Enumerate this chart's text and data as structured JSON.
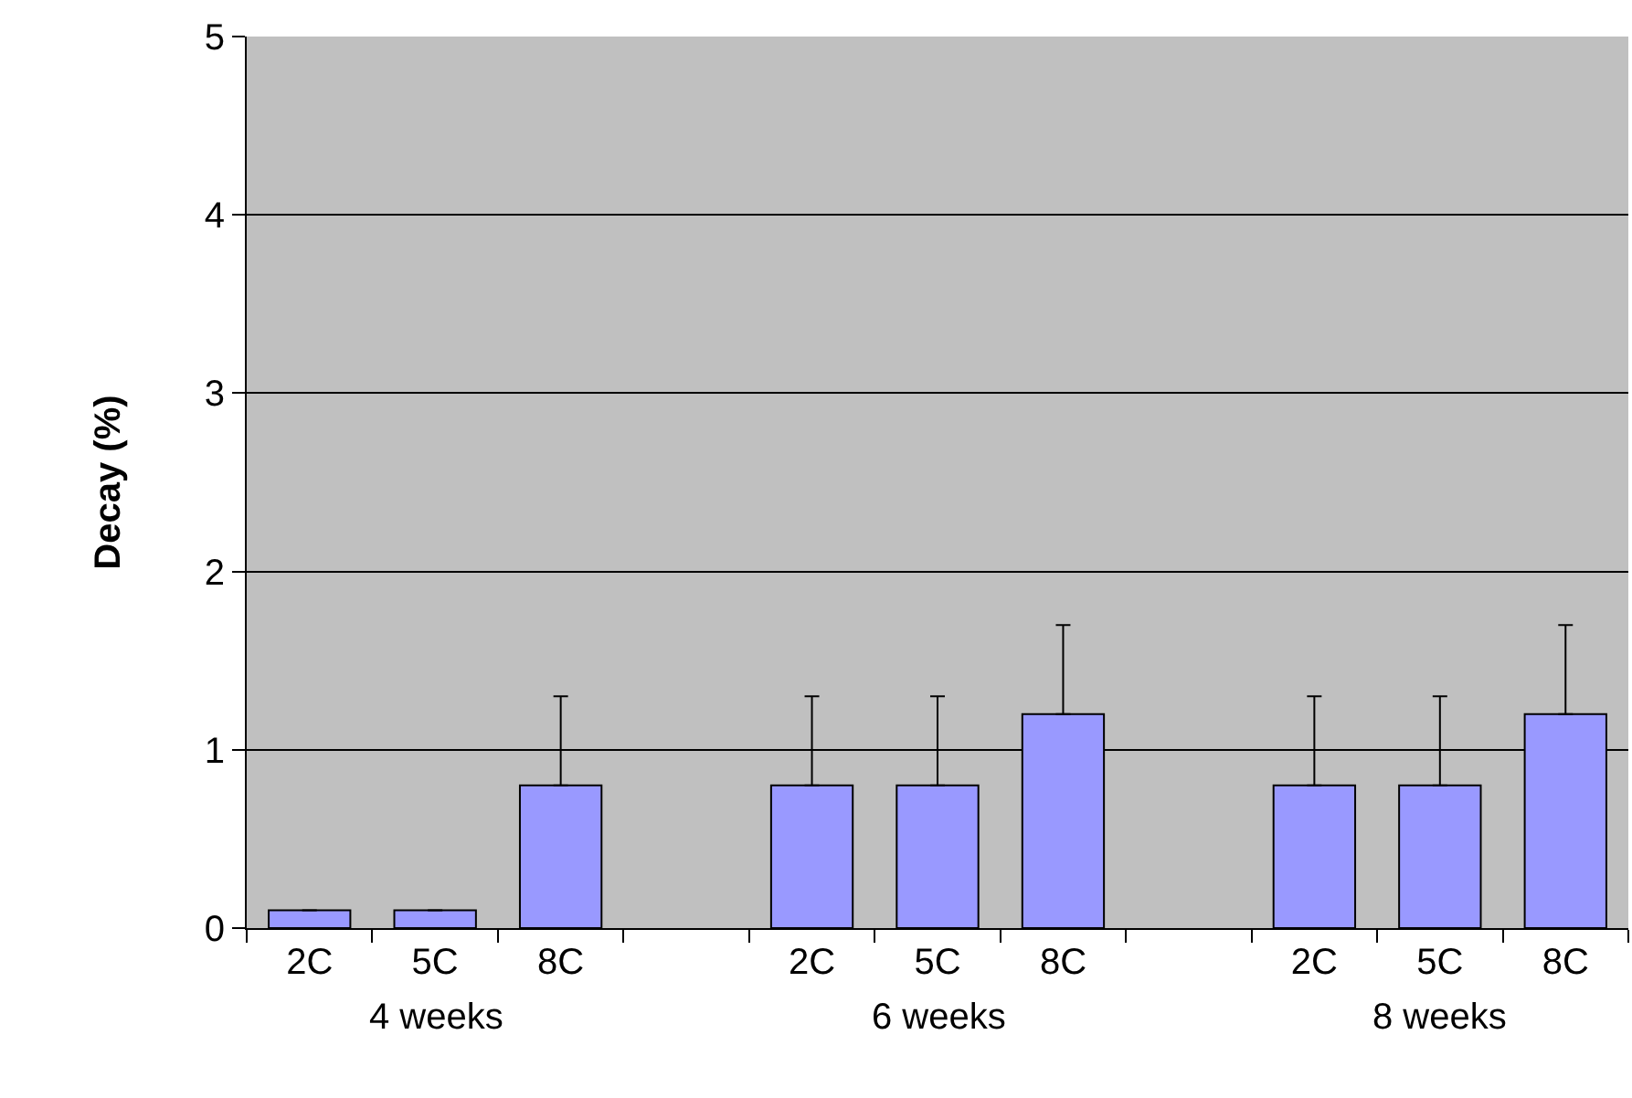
{
  "chart_data": {
    "type": "bar",
    "ylabel": "Decay (%)",
    "categories": [
      "2C",
      "5C",
      "8C",
      null,
      "2C",
      "5C",
      "8C",
      null,
      "2C",
      "5C",
      "8C"
    ],
    "values": [
      0.1,
      0.1,
      0.8,
      null,
      0.8,
      0.8,
      1.2,
      null,
      0.8,
      0.8,
      1.2
    ],
    "errors": [
      null,
      null,
      [
        0.8,
        1.3
      ],
      null,
      [
        0.8,
        1.3
      ],
      [
        0.8,
        1.3
      ],
      [
        1.2,
        1.7
      ],
      null,
      [
        0.8,
        1.3
      ],
      [
        0.8,
        1.3
      ],
      [
        1.2,
        1.7
      ]
    ],
    "color": "#9999ff",
    "annotations": [
      "4 weeks",
      "6 weeks",
      "8 weeks"
    ],
    "ylim": [
      0,
      5
    ],
    "yticks": [
      0,
      1,
      2,
      3,
      4,
      5
    ],
    "grid": "y",
    "legend": false
  }
}
